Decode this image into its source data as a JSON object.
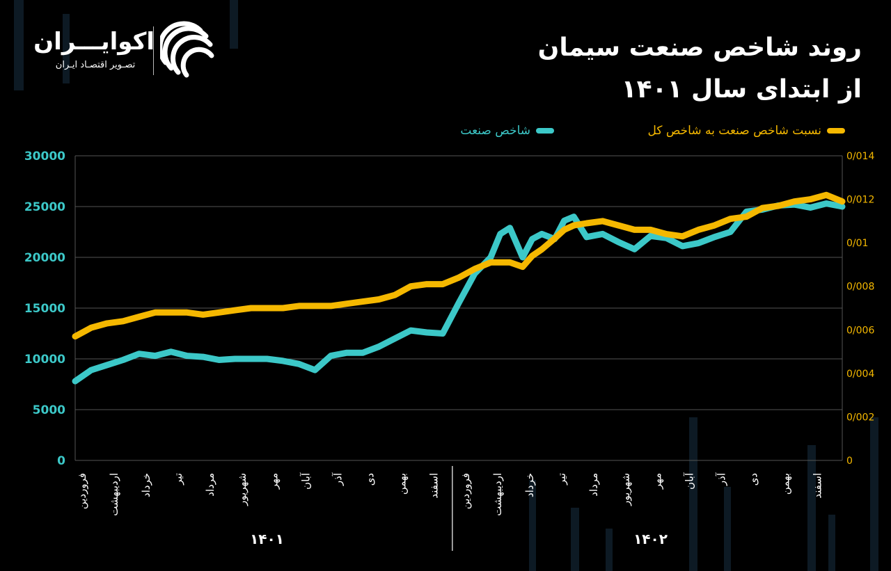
{
  "title": {
    "line1": "روند شاخص صنعت سیمان",
    "line2": "از ابتدای سال ۱۴۰۱"
  },
  "brand": {
    "name": "اکوایـــران",
    "tagline": "تصـویر اقتصـاد ایـران"
  },
  "colors": {
    "background": "#000000",
    "index_series": "#3cc8c8",
    "ratio_series": "#f5b800",
    "grid": "#555555",
    "left_axis_text": "#3cc8c8",
    "right_axis_text": "#f5b800"
  },
  "chart_data": {
    "type": "line",
    "grid": true,
    "legend_position": "top-right",
    "left_axis": {
      "range": [
        0,
        30000
      ],
      "ticks": [
        0,
        5000,
        10000,
        15000,
        20000,
        25000,
        30000
      ],
      "tick_labels": [
        "0",
        "5000",
        "10000",
        "15000",
        "20000",
        "25000",
        "30000"
      ]
    },
    "right_axis": {
      "range": [
        0,
        0.014
      ],
      "ticks": [
        0,
        0.002,
        0.004,
        0.006,
        0.008,
        0.01,
        0.012,
        0.014
      ],
      "tick_labels": [
        "0",
        "0/002",
        "0/004",
        "0/006",
        "0/008",
        "0/01",
        "0/012",
        "0/014"
      ]
    },
    "x_axis": {
      "range": [
        0,
        24
      ],
      "month_labels": [
        {
          "pos": 0.2,
          "label": "فروردین"
        },
        {
          "pos": 1.2,
          "label": "اردیبهشت"
        },
        {
          "pos": 2.2,
          "label": "خرداد"
        },
        {
          "pos": 3.2,
          "label": "تیر"
        },
        {
          "pos": 4.2,
          "label": "مرداد"
        },
        {
          "pos": 5.2,
          "label": "شهریور"
        },
        {
          "pos": 6.2,
          "label": "مهر"
        },
        {
          "pos": 7.2,
          "label": "آبان"
        },
        {
          "pos": 8.2,
          "label": "آذر"
        },
        {
          "pos": 9.2,
          "label": "دی"
        },
        {
          "pos": 10.2,
          "label": "بهمن"
        },
        {
          "pos": 11.2,
          "label": "اسفند"
        },
        {
          "pos": 12.2,
          "label": "فروردین"
        },
        {
          "pos": 13.2,
          "label": "اردیبهشت"
        },
        {
          "pos": 14.2,
          "label": "خرداد"
        },
        {
          "pos": 15.2,
          "label": "تیر"
        },
        {
          "pos": 16.2,
          "label": "مرداد"
        },
        {
          "pos": 17.2,
          "label": "شهریور"
        },
        {
          "pos": 18.2,
          "label": "مهر"
        },
        {
          "pos": 19.2,
          "label": "آبان"
        },
        {
          "pos": 20.2,
          "label": "آذر"
        },
        {
          "pos": 21.2,
          "label": "دی"
        },
        {
          "pos": 22.2,
          "label": "بهمن"
        },
        {
          "pos": 23.2,
          "label": "اسفند"
        }
      ],
      "year_labels": [
        {
          "pos": 6.0,
          "label": "۱۴۰۱"
        },
        {
          "pos": 18.0,
          "label": "۱۴۰۲"
        }
      ],
      "year_divider": 11.8
    },
    "series": [
      {
        "name": "شاخص صنعت",
        "axis": "left",
        "x": [
          0,
          0.5,
          1,
          1.5,
          2,
          2.5,
          3,
          3.5,
          4,
          4.5,
          5,
          5.5,
          6,
          6.5,
          7,
          7.5,
          8,
          8.5,
          9,
          9.5,
          10,
          10.5,
          11,
          11.5,
          12,
          12.5,
          13,
          13.3,
          13.6,
          14,
          14.3,
          14.6,
          15,
          15.3,
          15.6,
          16,
          16.5,
          17,
          17.5,
          18,
          18.5,
          19,
          19.5,
          20,
          20.5,
          21,
          21.5,
          22,
          22.5,
          23,
          23.5,
          24
        ],
        "y": [
          7800,
          8900,
          9400,
          9900,
          10500,
          10300,
          10700,
          10300,
          10200,
          9900,
          10000,
          10000,
          10000,
          9800,
          9500,
          8900,
          10300,
          10600,
          10600,
          11200,
          12000,
          12800,
          12600,
          12500,
          15500,
          18400,
          20000,
          22300,
          22900,
          20000,
          21800,
          22300,
          21800,
          23600,
          24000,
          22000,
          22300,
          21500,
          20800,
          22100,
          21900,
          21100,
          21400,
          22000,
          22500,
          24500,
          24700,
          25100,
          25200,
          24900,
          25300,
          25000
        ]
      },
      {
        "name": "نسبت شاخص صنعت به شاخص کل",
        "axis": "right",
        "x": [
          0,
          0.5,
          1,
          1.5,
          2,
          2.5,
          3,
          3.5,
          4,
          4.5,
          5,
          5.5,
          6,
          6.5,
          7,
          7.5,
          8,
          8.5,
          9,
          9.5,
          10,
          10.5,
          11,
          11.5,
          12,
          12.5,
          13,
          13.3,
          13.6,
          14,
          14.3,
          14.6,
          15,
          15.3,
          15.6,
          16,
          16.5,
          17,
          17.5,
          18,
          18.5,
          19,
          19.5,
          20,
          20.5,
          21,
          21.5,
          22,
          22.5,
          23,
          23.5,
          24
        ],
        "y": [
          0.0057,
          0.0061,
          0.0063,
          0.0064,
          0.0066,
          0.0068,
          0.0068,
          0.0068,
          0.0067,
          0.0068,
          0.0069,
          0.007,
          0.007,
          0.007,
          0.0071,
          0.0071,
          0.0071,
          0.0072,
          0.0073,
          0.0074,
          0.0076,
          0.008,
          0.0081,
          0.0081,
          0.0084,
          0.0088,
          0.0091,
          0.0091,
          0.0091,
          0.0089,
          0.0094,
          0.0097,
          0.0102,
          0.0106,
          0.0108,
          0.0109,
          0.011,
          0.0108,
          0.0106,
          0.0106,
          0.0104,
          0.0103,
          0.0106,
          0.0108,
          0.0111,
          0.0112,
          0.0116,
          0.0117,
          0.0119,
          0.012,
          0.0122,
          0.0119
        ]
      }
    ]
  }
}
